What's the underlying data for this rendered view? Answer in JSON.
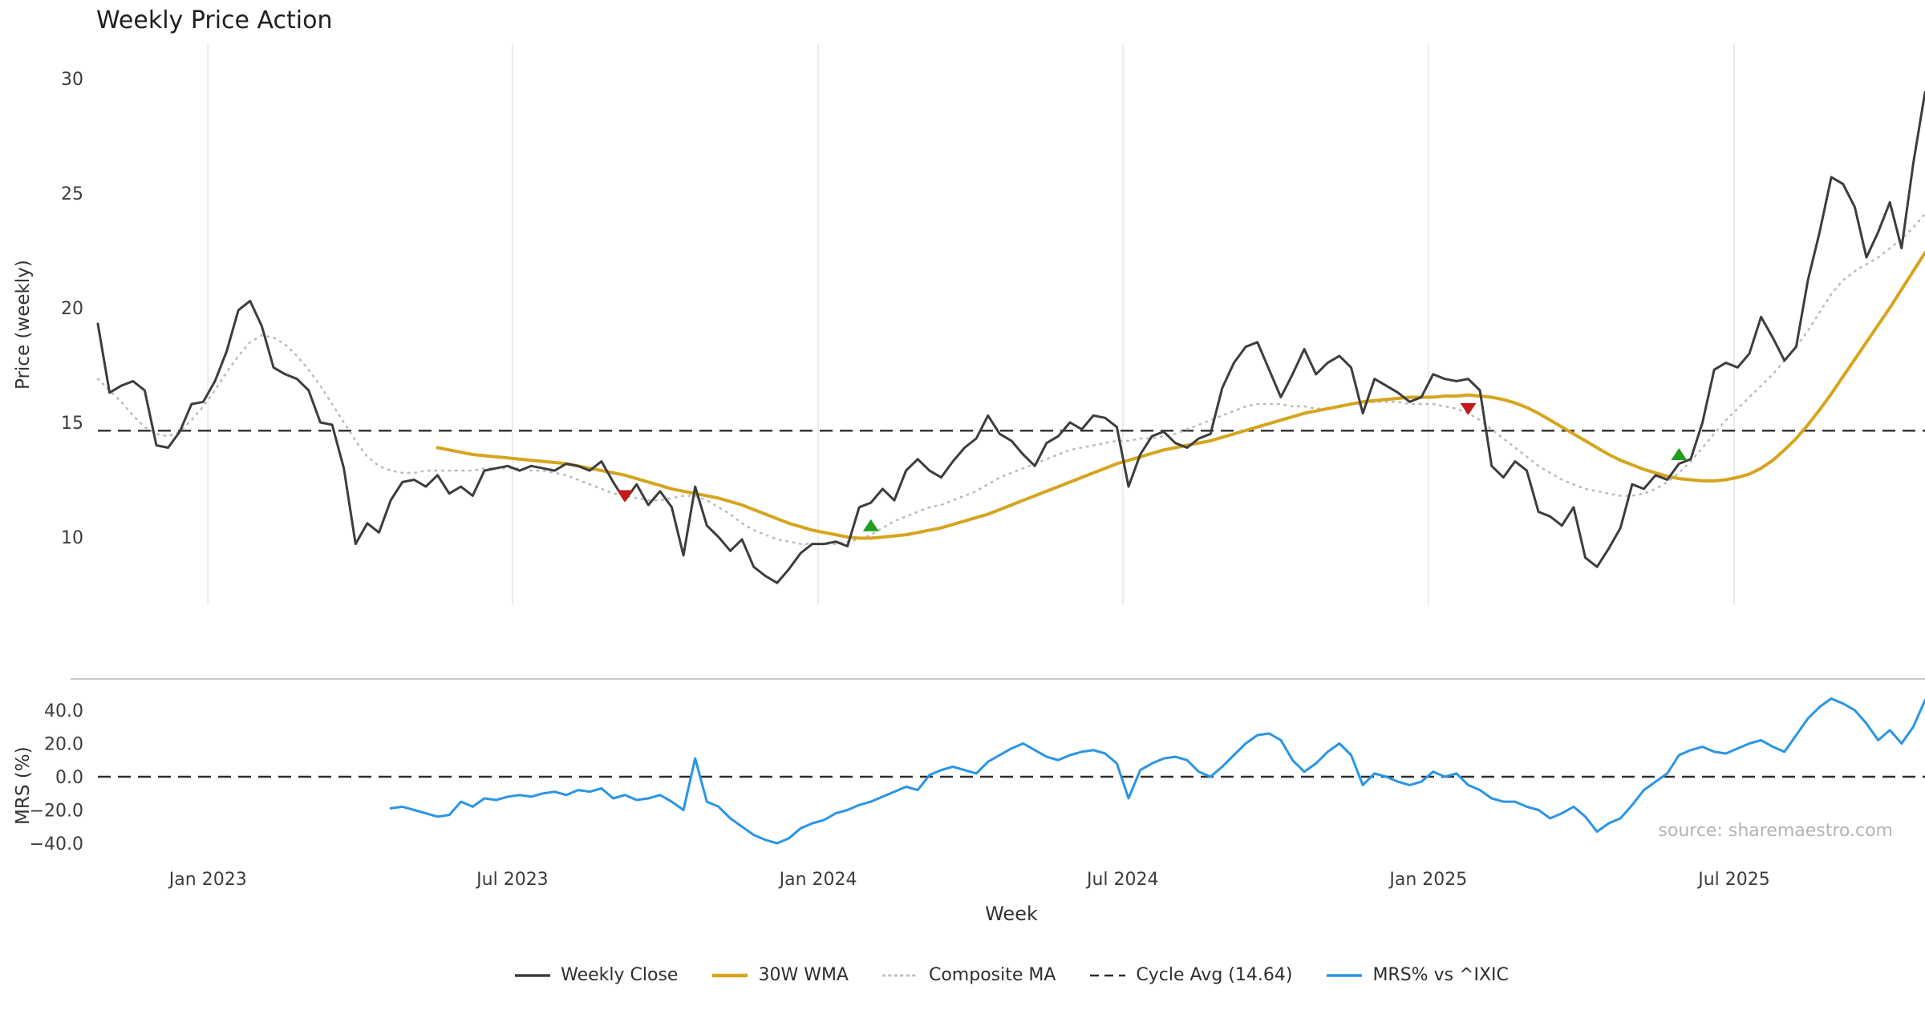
{
  "header": {
    "title": "Weekly Price Action"
  },
  "footer": {
    "source_note": "source: sharemaestro.com"
  },
  "legend": {
    "items": [
      {
        "label": "Weekly Close",
        "color": "#3d3d3d",
        "style": "solid",
        "width": 3.5
      },
      {
        "label": "30W WMA",
        "color": "#d6a41e",
        "style": "solid",
        "width": 4.5
      },
      {
        "label": "Composite MA",
        "color": "#bcbcbc",
        "style": "dotted",
        "width": 3
      },
      {
        "label": "Cycle Avg (14.64)",
        "color": "#2d2d2d",
        "style": "dashed",
        "width": 2.5
      },
      {
        "label": "MRS% vs ^IXIC",
        "color": "#2a95e5",
        "style": "solid",
        "width": 3.5
      }
    ]
  },
  "chart_data": {
    "type": "line",
    "title": "Weekly Price Action",
    "xlabel": "Week",
    "weeks_total": 156,
    "x_ticks": [
      {
        "week": 9.4,
        "label": "Jan 2023"
      },
      {
        "week": 35.4,
        "label": "Jul 2023"
      },
      {
        "week": 61.5,
        "label": "Jan 2024"
      },
      {
        "week": 87.5,
        "label": "Jul 2024"
      },
      {
        "week": 113.6,
        "label": "Jan 2025"
      },
      {
        "week": 139.7,
        "label": "Jul 2025"
      }
    ],
    "price_panel": {
      "ylabel": "Price (weekly)",
      "y_ticks": [
        10,
        15,
        20,
        25,
        30
      ],
      "ylim": [
        6.9,
        31.5
      ],
      "cycle_avg": 14.64,
      "grid": "vertical-only",
      "series": [
        {
          "name": "Composite MA",
          "color": "#bcbcbc",
          "width": 2.6,
          "style": "dotted",
          "start_week": 0,
          "values": [
            16.9,
            16.4,
            15.9,
            15.3,
            14.8,
            14.5,
            14.4,
            14.6,
            15.1,
            15.7,
            16.4,
            17.2,
            17.9,
            18.5,
            18.8,
            18.7,
            18.4,
            17.9,
            17.3,
            16.6,
            15.8,
            15.0,
            14.2,
            13.5,
            13.1,
            12.9,
            12.8,
            12.8,
            12.9,
            12.9,
            12.9,
            12.9,
            12.9,
            13.0,
            13.0,
            13.0,
            13.0,
            12.9,
            12.9,
            12.8,
            12.7,
            12.5,
            12.3,
            12.1,
            11.9,
            11.8,
            11.7,
            11.6,
            11.6,
            11.7,
            11.8,
            11.8,
            11.6,
            11.3,
            11.0,
            10.6,
            10.3,
            10.1,
            9.9,
            9.8,
            9.7,
            9.7,
            9.7,
            9.7,
            9.8,
            9.9,
            10.1,
            10.4,
            10.7,
            10.9,
            11.1,
            11.3,
            11.4,
            11.6,
            11.8,
            12.0,
            12.3,
            12.6,
            12.8,
            13.0,
            13.2,
            13.4,
            13.6,
            13.8,
            13.9,
            14.0,
            14.1,
            14.2,
            14.2,
            14.3,
            14.3,
            14.4,
            14.5,
            14.7,
            14.9,
            15.1,
            15.3,
            15.5,
            15.7,
            15.8,
            15.8,
            15.8,
            15.7,
            15.7,
            15.6,
            15.6,
            15.7,
            15.8,
            15.8,
            15.9,
            15.9,
            15.9,
            15.8,
            15.8,
            15.8,
            15.7,
            15.6,
            15.4,
            15.1,
            14.7,
            14.3,
            13.9,
            13.5,
            13.1,
            12.8,
            12.5,
            12.3,
            12.1,
            12.0,
            11.9,
            11.8,
            11.8,
            11.9,
            12.1,
            12.4,
            12.8,
            13.3,
            13.9,
            14.5,
            15.1,
            15.6,
            16.1,
            16.6,
            17.1,
            17.7,
            18.3,
            19.0,
            19.8,
            20.6,
            21.2,
            21.6,
            21.9,
            22.2,
            22.6,
            23.0,
            23.5,
            24.1
          ]
        },
        {
          "name": "30W WMA",
          "color": "#d6a41e",
          "width": 4,
          "style": "solid",
          "start_week": 29,
          "values": [
            13.9,
            13.8,
            13.7,
            13.6,
            13.55,
            13.5,
            13.45,
            13.4,
            13.35,
            13.3,
            13.25,
            13.2,
            13.1,
            13.0,
            12.9,
            12.8,
            12.7,
            12.55,
            12.4,
            12.25,
            12.1,
            12.0,
            11.9,
            11.8,
            11.7,
            11.55,
            11.4,
            11.2,
            11.0,
            10.8,
            10.6,
            10.45,
            10.3,
            10.2,
            10.1,
            10.0,
            9.95,
            9.95,
            10.0,
            10.05,
            10.1,
            10.2,
            10.3,
            10.4,
            10.55,
            10.7,
            10.85,
            11.0,
            11.2,
            11.4,
            11.6,
            11.8,
            12.0,
            12.2,
            12.4,
            12.6,
            12.8,
            13.0,
            13.2,
            13.35,
            13.5,
            13.65,
            13.8,
            13.9,
            14.0,
            14.1,
            14.2,
            14.35,
            14.5,
            14.65,
            14.8,
            14.95,
            15.1,
            15.25,
            15.4,
            15.5,
            15.6,
            15.7,
            15.8,
            15.9,
            15.95,
            16.0,
            16.05,
            16.1,
            16.1,
            16.1,
            16.15,
            16.15,
            16.2,
            16.15,
            16.1,
            16.0,
            15.85,
            15.65,
            15.4,
            15.1,
            14.8,
            14.5,
            14.2,
            13.9,
            13.6,
            13.35,
            13.15,
            12.95,
            12.8,
            12.65,
            12.55,
            12.5,
            12.45,
            12.45,
            12.5,
            12.6,
            12.75,
            13.0,
            13.35,
            13.8,
            14.3,
            14.9,
            15.55,
            16.25,
            17.0,
            17.75,
            18.5,
            19.25,
            20.0,
            20.8,
            21.6,
            22.4
          ]
        },
        {
          "name": "Weekly Close",
          "color": "#3d3d3d",
          "width": 3,
          "style": "solid",
          "start_week": 0,
          "values": [
            19.3,
            16.3,
            16.6,
            16.8,
            16.4,
            14.0,
            13.9,
            14.6,
            15.8,
            15.9,
            16.8,
            18.1,
            19.9,
            20.3,
            19.2,
            17.4,
            17.1,
            16.9,
            16.4,
            15.0,
            14.9,
            13.0,
            9.7,
            10.6,
            10.2,
            11.6,
            12.4,
            12.5,
            12.2,
            12.7,
            11.9,
            12.2,
            11.8,
            12.9,
            13.0,
            13.1,
            12.9,
            13.1,
            13.0,
            12.9,
            13.2,
            13.1,
            12.9,
            13.3,
            12.4,
            11.6,
            12.3,
            11.4,
            12.0,
            11.3,
            9.2,
            12.2,
            10.5,
            10.0,
            9.4,
            9.9,
            8.7,
            8.3,
            8.0,
            8.6,
            9.3,
            9.7,
            9.7,
            9.8,
            9.6,
            11.3,
            11.5,
            12.1,
            11.6,
            12.9,
            13.4,
            12.9,
            12.6,
            13.3,
            13.9,
            14.3,
            15.3,
            14.5,
            14.2,
            13.6,
            13.1,
            14.1,
            14.4,
            15.0,
            14.7,
            15.3,
            15.2,
            14.8,
            12.2,
            13.6,
            14.4,
            14.6,
            14.1,
            13.9,
            14.3,
            14.5,
            16.5,
            17.6,
            18.3,
            18.5,
            17.3,
            16.1,
            17.1,
            18.2,
            17.1,
            17.6,
            17.9,
            17.4,
            15.4,
            16.9,
            16.6,
            16.3,
            15.9,
            16.1,
            17.1,
            16.9,
            16.8,
            16.9,
            16.4,
            13.1,
            12.6,
            13.3,
            12.9,
            11.1,
            10.9,
            10.5,
            11.3,
            9.1,
            8.7,
            9.5,
            10.4,
            12.3,
            12.1,
            12.7,
            12.5,
            13.2,
            13.4,
            15.0,
            17.3,
            17.6,
            17.4,
            18.0,
            19.6,
            18.7,
            17.7,
            18.3,
            21.2,
            23.3,
            25.7,
            25.4,
            24.4,
            22.2,
            23.3,
            24.6,
            22.6,
            26.3,
            29.4
          ]
        }
      ],
      "signals": [
        {
          "type": "sell",
          "week": 45,
          "price": 11.8
        },
        {
          "type": "buy",
          "week": 66,
          "price": 10.5
        },
        {
          "type": "sell",
          "week": 117,
          "price": 15.6
        },
        {
          "type": "buy",
          "week": 135,
          "price": 13.6
        }
      ],
      "signal_colors": {
        "buy": "#1f9e1f",
        "sell": "#c41a1a"
      }
    },
    "mrs_panel": {
      "ylabel": "MRS (%)",
      "zero_line": 0,
      "ylim": [
        -49.6,
        58.8
      ],
      "y_ticks": [
        {
          "value": -40,
          "label": "−40.0"
        },
        {
          "value": -20,
          "label": "−20.0"
        },
        {
          "value": 0,
          "label": "0.0"
        },
        {
          "value": 20,
          "label": "20.0"
        },
        {
          "value": 40,
          "label": "40.0"
        }
      ],
      "series": [
        {
          "name": "MRS% vs ^IXIC",
          "color": "#2a95e5",
          "width": 3,
          "style": "solid",
          "start_week": 25,
          "values": [
            -19,
            -18,
            -20,
            -22,
            -24,
            -23,
            -15,
            -18,
            -13,
            -14,
            -12,
            -11,
            -12,
            -10,
            -9,
            -11,
            -8,
            -9,
            -7,
            -13,
            -11,
            -14,
            -13,
            -11,
            -15,
            -20,
            11,
            -15,
            -18,
            -25,
            -30,
            -35,
            -38,
            -40,
            -37,
            -31,
            -28,
            -26,
            -22,
            -20,
            -17,
            -15,
            -12,
            -9,
            -6,
            -8,
            1,
            4,
            6,
            4,
            2,
            9,
            13,
            17,
            20,
            16,
            12,
            10,
            13,
            15,
            16,
            14,
            8,
            -13,
            4,
            8,
            11,
            12,
            10,
            3,
            0,
            6,
            13,
            20,
            25,
            26,
            22,
            10,
            3,
            8,
            15,
            20,
            13,
            -5,
            2,
            0,
            -3,
            -5,
            -3,
            3,
            0,
            2,
            -5,
            -8,
            -13,
            -15,
            -15,
            -18,
            -20,
            -25,
            -22,
            -18,
            -24,
            -33,
            -28,
            -25,
            -17,
            -8,
            -3,
            2,
            13,
            16,
            18,
            15,
            14,
            17,
            20,
            22,
            18,
            15,
            25,
            35,
            42,
            47,
            44,
            40,
            32,
            22,
            28,
            20,
            30,
            46
          ]
        }
      ]
    }
  }
}
